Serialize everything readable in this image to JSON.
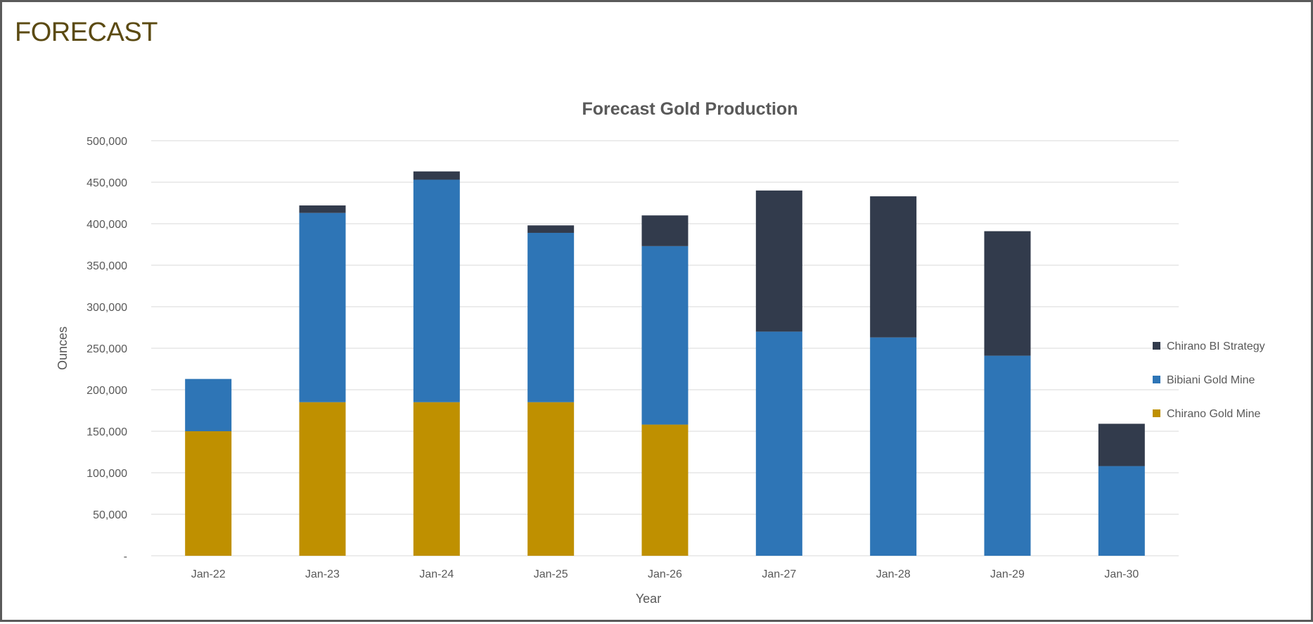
{
  "page": {
    "heading": "FORECAST"
  },
  "chart_data": {
    "type": "bar",
    "stacked": true,
    "title": "Forecast Gold Production",
    "xlabel": "Year",
    "ylabel": "Ounces",
    "ylim": [
      0,
      500000
    ],
    "yticks": [
      0,
      50000,
      100000,
      150000,
      200000,
      250000,
      300000,
      350000,
      400000,
      450000,
      500000
    ],
    "ytick_labels": [
      "-",
      "50,000",
      "100,000",
      "150,000",
      "200,000",
      "250,000",
      "300,000",
      "350,000",
      "400,000",
      "450,000",
      "500,000"
    ],
    "categories": [
      "Jan-22",
      "Jan-23",
      "Jan-24",
      "Jan-25",
      "Jan-26",
      "Jan-27",
      "Jan-28",
      "Jan-29",
      "Jan-30"
    ],
    "series": [
      {
        "name": "Chirano Gold Mine",
        "color": "#bf9000",
        "values": [
          150000,
          185000,
          185000,
          185000,
          158000,
          0,
          0,
          0,
          0
        ]
      },
      {
        "name": "Bibiani Gold Mine",
        "color": "#2e75b6",
        "values": [
          63000,
          228000,
          268000,
          204000,
          215000,
          270000,
          263000,
          241000,
          108000
        ]
      },
      {
        "name": "Chirano BI Strategy",
        "color": "#323b4c",
        "values": [
          0,
          9000,
          10000,
          9000,
          37000,
          170000,
          170000,
          150000,
          51000
        ]
      }
    ],
    "grid": true,
    "legend_position": "right",
    "legend_order": [
      "Chirano BI Strategy",
      "Bibiani Gold Mine",
      "Chirano Gold Mine"
    ]
  }
}
